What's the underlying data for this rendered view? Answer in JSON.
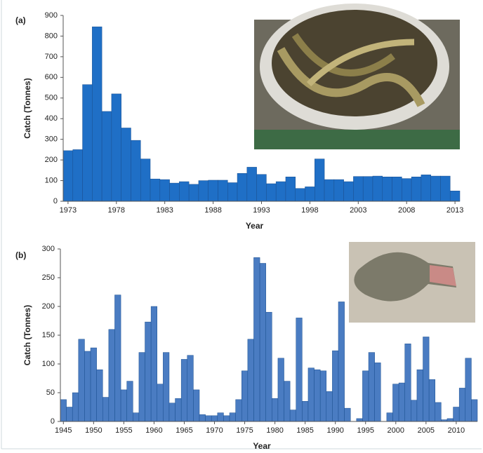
{
  "chart_data": [
    {
      "type": "bar",
      "panel_label": "(a)",
      "ylabel": "Catch (Tonnes)",
      "xlabel": "Year",
      "color": "#1f6fc6",
      "x": [
        1973,
        1974,
        1975,
        1976,
        1977,
        1978,
        1979,
        1980,
        1981,
        1982,
        1983,
        1984,
        1985,
        1986,
        1987,
        1988,
        1989,
        1990,
        1991,
        1992,
        1993,
        1994,
        1995,
        1996,
        1997,
        1998,
        1999,
        2000,
        2001,
        2002,
        2003,
        2004,
        2005,
        2006,
        2007,
        2008,
        2009,
        2010,
        2011,
        2012,
        2013
      ],
      "values": [
        245,
        250,
        565,
        845,
        435,
        520,
        355,
        295,
        205,
        108,
        105,
        88,
        95,
        82,
        100,
        102,
        102,
        90,
        135,
        165,
        130,
        85,
        95,
        118,
        62,
        70,
        205,
        105,
        105,
        95,
        120,
        120,
        122,
        118,
        118,
        110,
        118,
        128,
        122,
        122,
        50
      ],
      "xlim": [
        1972.5,
        2013.5
      ],
      "xticks": [
        1973,
        1978,
        1983,
        1988,
        1993,
        1998,
        2003,
        2008,
        2013
      ],
      "ylim": [
        0,
        900
      ],
      "yticks": [
        0,
        100,
        200,
        300,
        400,
        500,
        600,
        700,
        800,
        900
      ]
    },
    {
      "type": "bar",
      "panel_label": "(b)",
      "ylabel": "Catch (Tonnes)",
      "xlabel": "Year",
      "color": "#4a7cc2",
      "x": [
        1945,
        1946,
        1947,
        1948,
        1949,
        1950,
        1951,
        1952,
        1953,
        1954,
        1955,
        1956,
        1957,
        1958,
        1959,
        1960,
        1961,
        1962,
        1963,
        1964,
        1965,
        1966,
        1967,
        1968,
        1969,
        1970,
        1971,
        1972,
        1973,
        1974,
        1975,
        1976,
        1977,
        1978,
        1979,
        1980,
        1981,
        1982,
        1983,
        1984,
        1985,
        1986,
        1987,
        1988,
        1989,
        1990,
        1991,
        1992,
        1993,
        1994,
        1995,
        1996,
        1997,
        1998,
        1999,
        2000,
        2001,
        2002,
        2003,
        2004,
        2005,
        2006,
        2007,
        2008,
        2009,
        2010,
        2011,
        2012,
        2013
      ],
      "values": [
        38,
        25,
        50,
        143,
        122,
        128,
        90,
        42,
        160,
        220,
        55,
        70,
        15,
        120,
        173,
        200,
        65,
        120,
        32,
        40,
        108,
        115,
        55,
        12,
        10,
        10,
        15,
        10,
        15,
        38,
        88,
        143,
        285,
        275,
        190,
        40,
        110,
        70,
        20,
        180,
        35,
        93,
        90,
        88,
        52,
        123,
        208,
        23,
        0,
        5,
        88,
        120,
        102,
        0,
        15,
        65,
        67,
        135,
        37,
        90,
        147,
        73,
        33,
        3,
        5,
        25,
        58,
        110,
        38
      ],
      "xlim": [
        1944.5,
        2013.5
      ],
      "xticks": [
        1945,
        1950,
        1955,
        1960,
        1965,
        1970,
        1975,
        1980,
        1985,
        1990,
        1995,
        2000,
        2005,
        2010
      ],
      "ylim": [
        0,
        300
      ],
      "yticks": [
        0,
        50,
        100,
        150,
        200,
        250,
        300
      ]
    }
  ]
}
